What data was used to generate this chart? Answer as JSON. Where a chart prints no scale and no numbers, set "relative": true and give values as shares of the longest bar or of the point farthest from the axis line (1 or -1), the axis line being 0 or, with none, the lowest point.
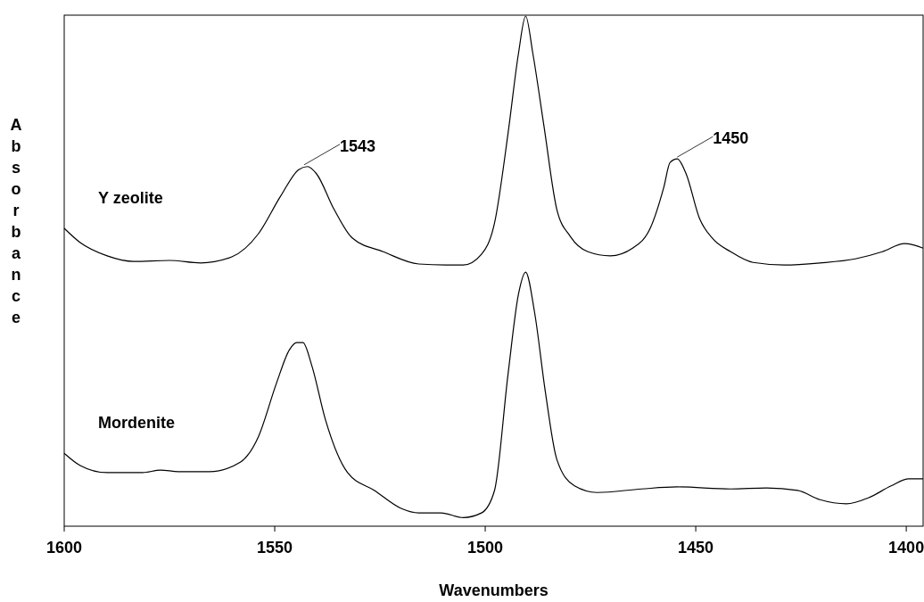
{
  "chart_data": {
    "type": "line",
    "relative": true,
    "xlabel": "Wavenumbers",
    "ylabel": "Absorbance",
    "xlim": [
      1600,
      1396
    ],
    "xticks": [
      1600,
      1550,
      1500,
      1450,
      1400
    ],
    "grid": false,
    "marker": "none",
    "line_style": "solid",
    "tick_labels": "x",
    "annotations": [
      {
        "text": "1543",
        "x": 1543,
        "y": 0.705
      },
      {
        "text": "1450",
        "x": 1454.4,
        "y": 0.72
      }
    ],
    "series": [
      {
        "name": "Y zeolite",
        "color": "#000000",
        "x": [
          1600,
          1596.2,
          1589.8,
          1583.5,
          1575,
          1567.6,
          1560.2,
          1553.9,
          1548.6,
          1544.3,
          1542.2,
          1540.1,
          1535.9,
          1531.6,
          1524.2,
          1515.8,
          1509.4,
          1505.2,
          1500.9,
          1497.8,
          1494.6,
          1492.1,
          1490.4,
          1488.7,
          1486.1,
          1483,
          1479.8,
          1475.6,
          1470.3,
          1465,
          1460.7,
          1457.6,
          1456.1,
          1454.4,
          1452.3,
          1449.1,
          1445.9,
          1441.7,
          1436.4,
          1429,
          1420.5,
          1412.1,
          1405.7,
          1400.4,
          1396
        ],
        "values": [
          0.584,
          0.556,
          0.53,
          0.519,
          0.521,
          0.516,
          0.528,
          0.573,
          0.647,
          0.699,
          0.705,
          0.691,
          0.621,
          0.565,
          0.538,
          0.514,
          0.512,
          0.512,
          0.533,
          0.594,
          0.769,
          0.927,
          1.0,
          0.927,
          0.787,
          0.621,
          0.568,
          0.538,
          0.53,
          0.545,
          0.586,
          0.664,
          0.713,
          0.72,
          0.691,
          0.603,
          0.563,
          0.538,
          0.517,
          0.512,
          0.516,
          0.524,
          0.538,
          0.554,
          0.545
        ]
      },
      {
        "name": "Mordenite",
        "color": "#000000",
        "x": [
          1600,
          1596.2,
          1589.8,
          1581.4,
          1577.1,
          1572.9,
          1565.5,
          1558.1,
          1553.9,
          1549.6,
          1546.5,
          1544.8,
          1543.3,
          1541.2,
          1538,
          1532.7,
          1526.3,
          1520,
          1515.8,
          1510.5,
          1505.2,
          1500.9,
          1497.8,
          1494.6,
          1492.1,
          1490.4,
          1488.3,
          1485.7,
          1483,
          1478.8,
          1473.4,
          1462.9,
          1454.4,
          1441.7,
          1433.2,
          1425.8,
          1420.5,
          1414.2,
          1408.9,
          1403.6,
          1399.4,
          1396
        ],
        "values": [
          0.143,
          0.119,
          0.105,
          0.105,
          0.11,
          0.107,
          0.107,
          0.126,
          0.175,
          0.28,
          0.346,
          0.36,
          0.36,
          0.315,
          0.21,
          0.105,
          0.07,
          0.035,
          0.026,
          0.026,
          0.017,
          0.026,
          0.07,
          0.297,
          0.455,
          0.498,
          0.42,
          0.262,
          0.131,
          0.079,
          0.066,
          0.073,
          0.077,
          0.073,
          0.075,
          0.07,
          0.052,
          0.044,
          0.056,
          0.079,
          0.093,
          0.093
        ]
      }
    ]
  }
}
